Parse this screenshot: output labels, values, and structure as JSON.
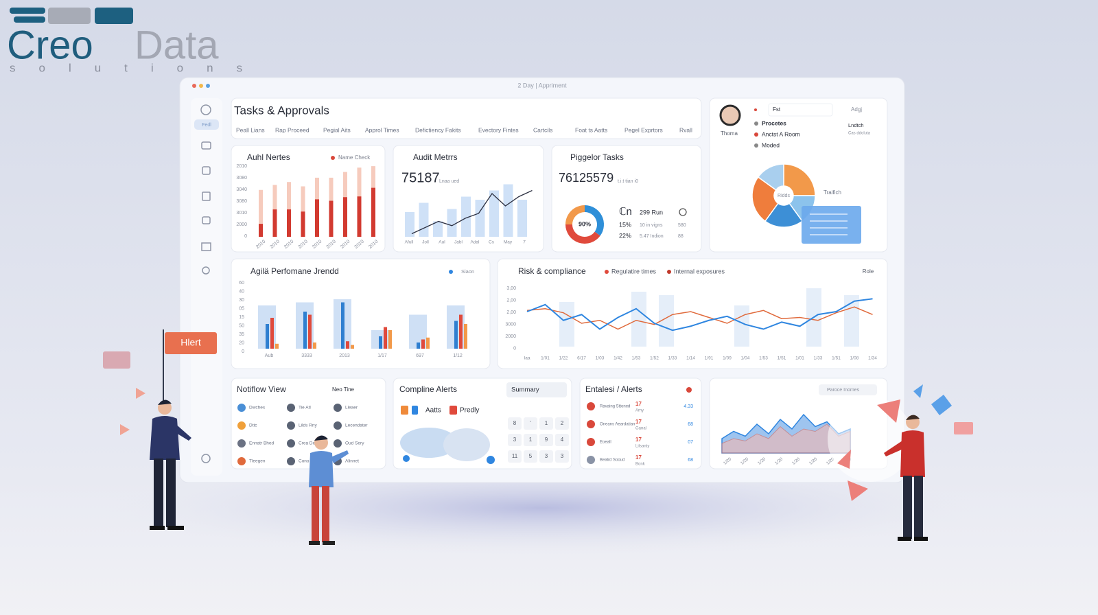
{
  "logo": {
    "brand": "Creo",
    "brand2": "Data",
    "tagline": "solutions"
  },
  "window": {
    "title": "2 Day | Appriment"
  },
  "sidebar": {
    "active": "Fedl"
  },
  "header": {
    "title": "Tasks & Approvals",
    "tabs": [
      "Peall Lians",
      "Rap Proceed",
      "Pegial Aits",
      "Approl Times",
      "Defictiency Fakits",
      "Evectory Fintes",
      "Cartcils",
      "Foat ts Aatts",
      "Pegel Exprtors",
      "Rvall"
    ]
  },
  "audit_notes": {
    "title": "Auhl Nertes",
    "legend": "Name Check",
    "axis_labels": [
      "2010",
      "3080",
      "3040",
      "3080",
      "3010",
      "2000",
      "0"
    ],
    "x_labels": [
      "2010",
      "2010",
      "2010",
      "2010",
      "2010",
      "2010",
      "2010",
      "2010",
      "2010"
    ],
    "ylim": [
      0,
      100
    ],
    "light": [
      65,
      72,
      76,
      70,
      82,
      82,
      90,
      96,
      98
    ],
    "dark": [
      18,
      38,
      38,
      35,
      52,
      50,
      55,
      56,
      68
    ]
  },
  "audit_metrics": {
    "title": "Audit Metrrs",
    "value": "75187",
    "caption": "Lnaa ued",
    "x_labels": [
      "Afull",
      "Joll",
      "Aul",
      "Jabl",
      "Adal",
      "Cs",
      "May",
      "7"
    ],
    "ylim": [
      0,
      100
    ],
    "bars": [
      40,
      55,
      25,
      45,
      65,
      60,
      75,
      85,
      60
    ],
    "line": [
      5,
      15,
      25,
      18,
      30,
      38,
      70,
      50,
      65,
      75
    ]
  },
  "pigglor": {
    "title": "Piggelor Tasks",
    "value": "76125579",
    "caption": "t.i.t tian i0",
    "donut": {
      "center": "90%",
      "segments": [
        {
          "value": 35,
          "color": "#2f8fd8"
        },
        {
          "value": 40,
          "color": "#e04a3c"
        },
        {
          "value": 25,
          "color": "#f2994a"
        }
      ]
    },
    "top": {
      "a": "ℂn",
      "b": "299 Run"
    },
    "stats": [
      {
        "a": "15%",
        "b": "10 in vigns",
        "c": "580"
      },
      {
        "a": "22%",
        "b": "5.47 Indion",
        "c": "88"
      }
    ]
  },
  "profile": {
    "name": "Thoma",
    "tag": "Fst",
    "button": "Adgj",
    "items": [
      "Procetes",
      "Anctst A Room",
      "Moded"
    ],
    "side": "Lndtch",
    "side2": "Cas ddoluta",
    "pie_center": "Ridds",
    "pie_label": "Traifich",
    "pie": [
      25,
      15,
      20,
      25,
      15
    ],
    "colors": [
      "#f2994a",
      "#8cc3ec",
      "#3d8fd6",
      "#ef7d3c",
      "#a9cfee"
    ]
  },
  "trend": {
    "title": "Agilä Perfomane Jrendd",
    "toggle": "Siaon",
    "axis_labels": [
      "60",
      "40",
      "30",
      "05",
      "15",
      "50",
      "35",
      "20",
      "0"
    ],
    "x_labels": [
      "Aub",
      "3333",
      "2013",
      "1/17",
      "697",
      "1/12"
    ],
    "ylim": [
      0,
      100
    ],
    "series": [
      {
        "color": "#cfe0f5",
        "values": [
          70,
          75,
          80,
          30,
          55,
          70
        ]
      },
      {
        "color": "#2f7fd0",
        "values": [
          40,
          60,
          75,
          20,
          10,
          45
        ]
      },
      {
        "color": "#e04a3c",
        "values": [
          50,
          55,
          12,
          35,
          15,
          55
        ]
      },
      {
        "color": "#f2994a",
        "values": [
          8,
          10,
          6,
          30,
          18,
          40
        ]
      }
    ]
  },
  "risk": {
    "title": "Risk & compliance",
    "legend": [
      "Regulatire times",
      "Internal exposures"
    ],
    "button": "Role",
    "axis_labels": [
      "3,00",
      "2,00",
      "2,00",
      "3000",
      "2000",
      "0"
    ],
    "x_labels": [
      "Iaa",
      "1/01",
      "1/22",
      "6/17",
      "1/03",
      "1/42",
      "1/53",
      "1/52",
      "1/33",
      "1/14",
      "1/91",
      "1/09",
      "1/04",
      "1/53",
      "1/51",
      "1/01",
      "1/33",
      "1/51",
      "1/08",
      "1/34"
    ],
    "ylim": [
      0,
      100
    ],
    "blue": [
      60,
      72,
      45,
      55,
      30,
      50,
      65,
      40,
      28,
      35,
      45,
      52,
      38,
      30,
      42,
      35,
      55,
      60,
      78,
      82
    ],
    "red": [
      62,
      65,
      58,
      40,
      45,
      30,
      45,
      38,
      55,
      60,
      50,
      40,
      55,
      62,
      48,
      50,
      45,
      58,
      68,
      55
    ]
  },
  "workflow": {
    "title": "Notiflow View",
    "tab": "Neo Tine",
    "items": [
      [
        "Dwches",
        "Tie Atl",
        "Lleaer"
      ],
      [
        "Dttc",
        "Lilds Rny",
        "Lecendater"
      ],
      [
        "Ennatr Bhed",
        "Crea Dedis",
        "Oud Sery"
      ],
      [
        "Tleegen",
        "Cono",
        "Alinnet"
      ]
    ]
  },
  "alerts": {
    "title": "Compline Alerts",
    "summary": "Summary",
    "chips": [
      "Aatts",
      "Predly"
    ],
    "keys": [
      "8",
      "'",
      "1",
      "2",
      "3",
      "1",
      "9",
      "4",
      "11",
      "5",
      "3",
      "3"
    ]
  },
  "entalesi": {
    "title": "Entalesi / Alerts",
    "rows": [
      {
        "name": "Ravaing Sttoned",
        "tag": "17",
        "sub": "Amy",
        "val": "4.33"
      },
      {
        "name": "Oneans Aeardatian",
        "tag": "17",
        "sub": "Ganal",
        "val": "68"
      },
      {
        "name": "Eoeall",
        "tag": "17",
        "sub": "Lilsanty",
        "val": "07"
      },
      {
        "name": "Bealrd Sooud",
        "tag": "17",
        "sub": "Bonk",
        "val": "68"
      }
    ]
  },
  "mini": {
    "filter": "Paroce Inomes",
    "ylim": [
      0,
      100
    ],
    "blue": [
      30,
      45,
      35,
      60,
      40,
      70,
      50,
      80,
      55,
      65,
      40,
      50
    ],
    "red": [
      20,
      30,
      25,
      40,
      30,
      55,
      35,
      50,
      45,
      60,
      35,
      45
    ],
    "x_labels": [
      "1/20",
      "1/20",
      "1/20",
      "1/20",
      "1/20",
      "1/20",
      "1/20",
      "1/20"
    ]
  },
  "callout": "Hlert"
}
